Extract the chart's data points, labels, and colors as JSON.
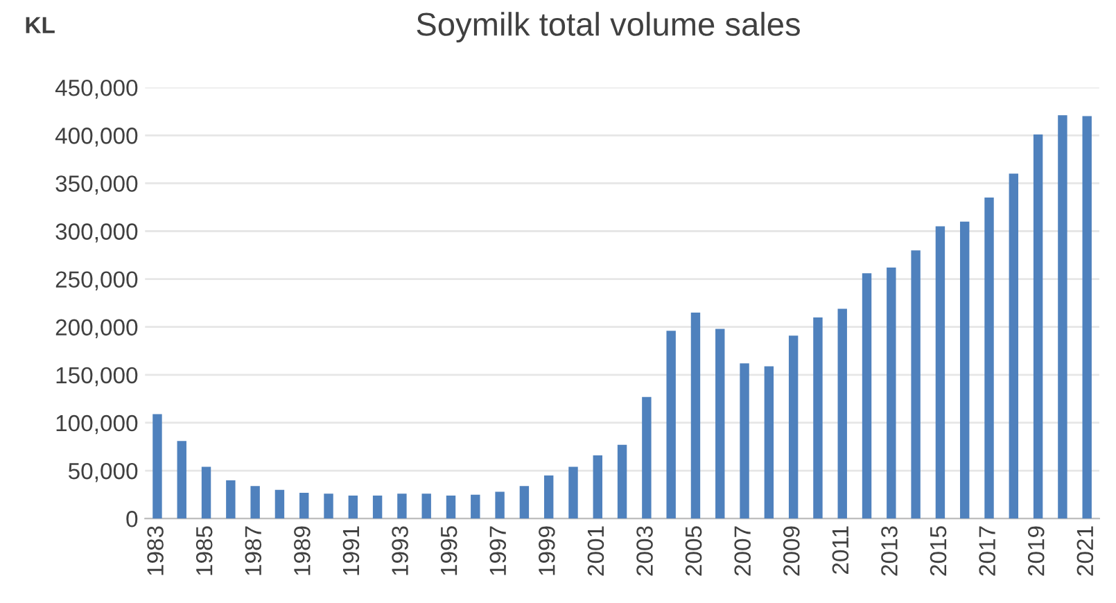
{
  "chart_data": {
    "type": "bar",
    "title": "Soymilk total volume sales",
    "ylabel": "KL",
    "categories": [
      "1983",
      null,
      "1985",
      null,
      "1987",
      null,
      "1989",
      null,
      "1991",
      null,
      "1993",
      null,
      "1995",
      null,
      "1997",
      null,
      "1999",
      null,
      "2001",
      null,
      "2003",
      null,
      "2005",
      null,
      "2007",
      null,
      "2009",
      null,
      "2011",
      null,
      "2013",
      null,
      "2015",
      null,
      "2017",
      null,
      "2019",
      null,
      "2021"
    ],
    "values": [
      109000,
      81000,
      54000,
      40000,
      34000,
      30000,
      27000,
      26000,
      24000,
      24000,
      26000,
      26000,
      24000,
      25000,
      28000,
      34000,
      45000,
      54000,
      66000,
      77000,
      127000,
      196000,
      215000,
      198000,
      162000,
      159000,
      191000,
      210000,
      219000,
      256000,
      262000,
      280000,
      305000,
      310000,
      335000,
      360000,
      401000,
      421000,
      420000
    ],
    "color": "#4f81bd",
    "ylim": [
      0,
      450000
    ],
    "yticks": [
      {
        "value": 0,
        "label": "0"
      },
      {
        "value": 50000,
        "label": "50,000"
      },
      {
        "value": 100000,
        "label": "100,000"
      },
      {
        "value": 150000,
        "label": "150,000"
      },
      {
        "value": 200000,
        "label": "200,000"
      },
      {
        "value": 250000,
        "label": "250,000"
      },
      {
        "value": 300000,
        "label": "300,000"
      },
      {
        "value": 350000,
        "label": "350,000"
      },
      {
        "value": 400000,
        "label": "400,000"
      },
      {
        "value": 450000,
        "label": "450,000"
      }
    ],
    "grid": "y"
  }
}
